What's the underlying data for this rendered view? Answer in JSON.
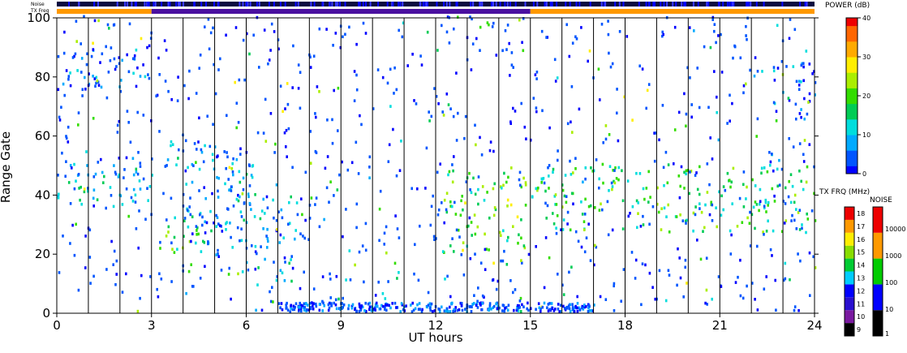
{
  "chart_data": {
    "type": "heatmap",
    "xlabel": "UT hours",
    "ylabel": "Range Gate",
    "xlim": [
      0,
      24
    ],
    "ylim": [
      0,
      100
    ],
    "x_ticks": [
      "0",
      "3",
      "6",
      "9",
      "12",
      "15",
      "18",
      "21",
      "24"
    ],
    "y_ticks": [
      "0",
      "20",
      "40",
      "60",
      "80",
      "100"
    ],
    "scan_boundaries_ut": [
      1,
      2,
      3,
      4,
      5,
      6,
      7,
      8,
      9,
      10,
      11,
      12,
      13,
      14,
      15,
      16,
      17,
      18,
      19,
      20,
      21,
      22,
      23
    ],
    "top_bars": {
      "noise_label": "Noise",
      "txfreq_label": "TX Freq",
      "txfreq_segments": [
        {
          "start": 0,
          "end": 3,
          "color": "#ff9900"
        },
        {
          "start": 3,
          "end": 15,
          "color": "#4a10a0"
        },
        {
          "start": 15,
          "end": 24,
          "color": "#ff9900"
        }
      ]
    },
    "echo_bands": [
      {
        "ut_start": 0,
        "ut_end": 3,
        "gate_low": 34,
        "gate_high": 52,
        "power_db": 10
      },
      {
        "ut_start": 3,
        "ut_end": 5,
        "gate_low": 20,
        "gate_high": 32,
        "power_db": 17
      },
      {
        "ut_start": 3,
        "ut_end": 5,
        "gate_low": 48,
        "gate_high": 58,
        "power_db": 8
      },
      {
        "ut_start": 4,
        "ut_end": 6.2,
        "gate_low": 28,
        "gate_high": 55,
        "power_db": 8
      },
      {
        "ut_start": 5,
        "ut_end": 7.6,
        "gate_low": 10,
        "gate_high": 40,
        "power_db": 8
      },
      {
        "ut_start": 12.2,
        "ut_end": 15,
        "gate_low": 20,
        "gate_high": 50,
        "power_db": 20
      },
      {
        "ut_start": 15,
        "ut_end": 24,
        "gate_low": 27,
        "gate_high": 50,
        "power_db": 17
      },
      {
        "ut_start": 0,
        "ut_end": 3,
        "gate_low": 75,
        "gate_high": 90,
        "power_db": 5
      },
      {
        "ut_start": 22.5,
        "ut_end": 24,
        "gate_low": 65,
        "gate_high": 85,
        "power_db": 5
      }
    ],
    "colorbars": {
      "power": {
        "title": "POWER (dB)",
        "ticks": [
          "40",
          "30",
          "20",
          "10",
          "0"
        ],
        "range": [
          0,
          40
        ],
        "colors": [
          "#0000ff",
          "#0055ff",
          "#00aaff",
          "#00dddd",
          "#00cc55",
          "#33dd00",
          "#aaee00",
          "#ffee00",
          "#ffaa00",
          "#ff6600",
          "#ee0000"
        ]
      },
      "tx_freq": {
        "title": "TX FRQ (MHz)",
        "ticks": [
          "18",
          "17",
          "16",
          "15",
          "14",
          "13",
          "12",
          "11",
          "10",
          "9"
        ],
        "colors": [
          "#000000",
          "#7a1aa0",
          "#2a10d0",
          "#0000ff",
          "#00ccff",
          "#00cc33",
          "#88dd00",
          "#ffee00",
          "#ff9900",
          "#ee0000"
        ]
      },
      "noise": {
        "title": "NOISE",
        "ticks": [
          "10000",
          "1000",
          "100",
          "10",
          "1"
        ],
        "colors": [
          "#000000",
          "#0000ff",
          "#00cc00",
          "#ff9900",
          "#ee0000"
        ]
      }
    }
  }
}
